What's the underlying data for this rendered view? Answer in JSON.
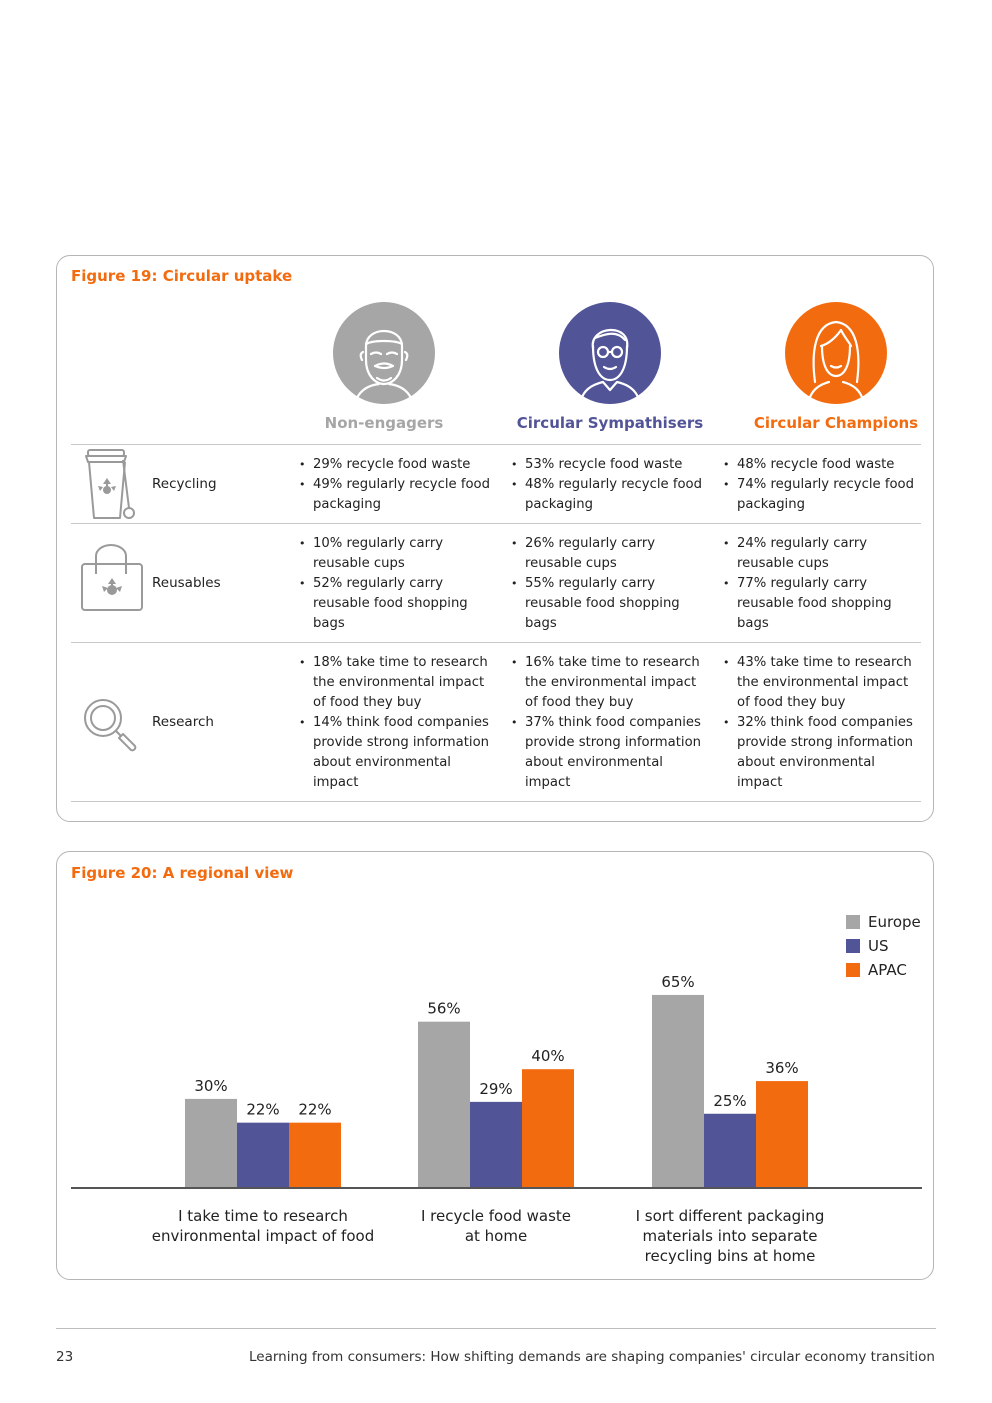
{
  "figure19": {
    "title": "Figure 19: Circular uptake",
    "segments": [
      {
        "name": "Non-engagers",
        "color": "#a6a6a6"
      },
      {
        "name": "Circular Sympathisers",
        "color": "#525498"
      },
      {
        "name": "Circular Champions",
        "color": "#f26b0f"
      }
    ],
    "rows": [
      {
        "label": "Recycling",
        "icon": "recycling-bin-icon",
        "cells": [
          [
            "29% recycle food waste",
            "49% regularly recycle food packaging"
          ],
          [
            "53% recycle food waste",
            "48% regularly recycle food packaging"
          ],
          [
            "48% recycle food waste",
            "74% regularly recycle food packaging"
          ]
        ]
      },
      {
        "label": "Reusables",
        "icon": "shopping-bag-icon",
        "cells": [
          [
            "10% regularly carry reusable cups",
            "52% regularly carry reusable food shopping bags"
          ],
          [
            "26% regularly carry reusable cups",
            "55% regularly carry reusable food shopping bags"
          ],
          [
            "24% regularly carry reusable cups",
            "77% regularly carry reusable food shopping bags"
          ]
        ]
      },
      {
        "label": "Research",
        "icon": "magnifier-icon",
        "cells": [
          [
            "18% take time to research the environmental impact of food they buy",
            "14% think food companies provide strong information about environmental impact"
          ],
          [
            "16% take time to research the environmental impact of food they buy",
            "37% think food companies provide strong information about environmental impact"
          ],
          [
            "43% take time to research the environmental impact of food they buy",
            "32% think food companies provide strong information about environmental impact"
          ]
        ]
      }
    ]
  },
  "figure20": {
    "title": "Figure 20: A regional view"
  },
  "chart_data": {
    "type": "bar",
    "categories": [
      "I take time to research environmental impact of food",
      "I recycle food waste at home",
      "I sort different packaging materials into separate recycling bins at home"
    ],
    "category_lines": [
      [
        "I take time to research",
        "environmental impact of food"
      ],
      [
        "I recycle food waste",
        "at home"
      ],
      [
        "I sort different packaging",
        "materials into separate",
        "recycling bins at home"
      ]
    ],
    "series": [
      {
        "name": "Europe",
        "values": [
          30,
          56,
          65
        ],
        "labels": [
          "30%",
          "56%",
          "65%"
        ],
        "color": "#a6a6a6"
      },
      {
        "name": "US",
        "values": [
          22,
          29,
          25
        ],
        "labels": [
          "22%",
          "29%",
          "25%"
        ],
        "color": "#525498"
      },
      {
        "name": "APAC",
        "values": [
          22,
          40,
          36
        ],
        "labels": [
          "22%",
          "40%",
          "36%"
        ],
        "color": "#f26b0f"
      }
    ],
    "ylim": [
      0,
      70
    ],
    "legend_position": "top-right",
    "grid": false
  },
  "footer": {
    "page_number": "23",
    "text": "Learning from consumers: How shifting demands are shaping companies' circular economy transition"
  }
}
